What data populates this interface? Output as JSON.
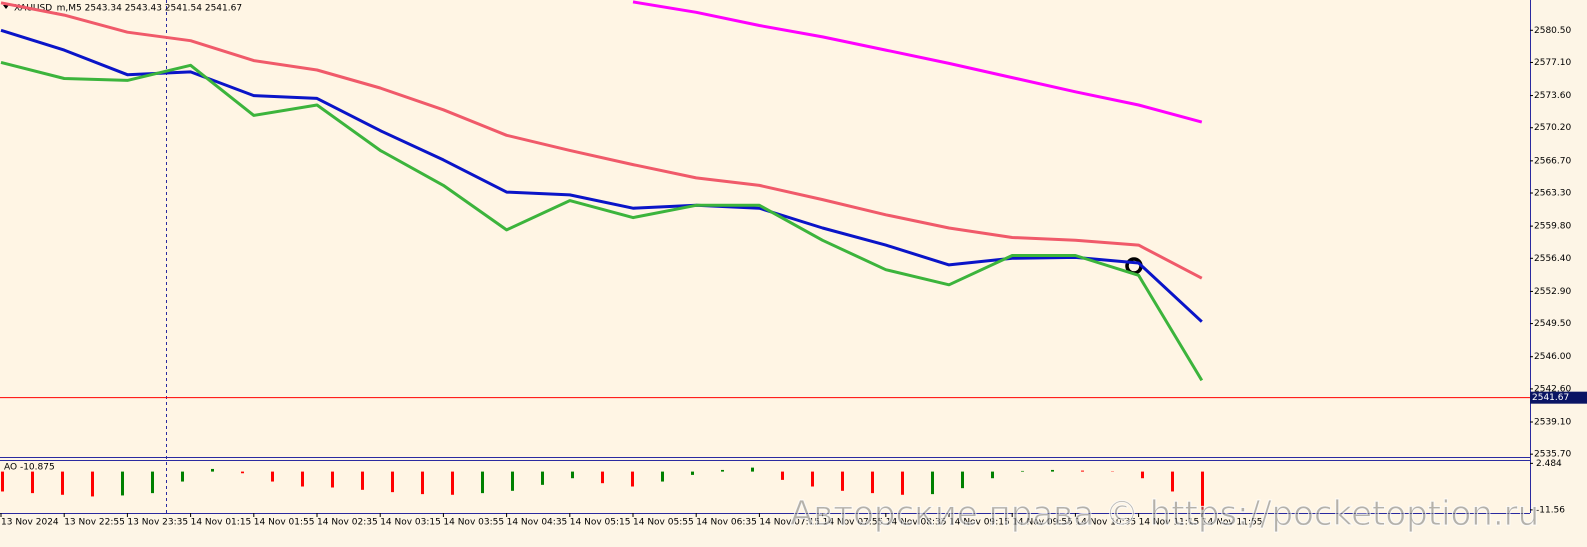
{
  "chart_data": [
    {
      "type": "line",
      "title": "XAUUSD_m,M5  2543.34 2543.43 2541.54 2541.67",
      "categories": [
        "13 Nov 2024",
        "13 Nov 22:55",
        "13 Nov 23:35",
        "14 Nov 01:15",
        "14 Nov 01:55",
        "14 Nov 02:35",
        "14 Nov 03:15",
        "14 Nov 03:55",
        "14 Nov 04:35",
        "14 Nov 05:15",
        "14 Nov 05:55",
        "14 Nov 06:35",
        "14 Nov 07:15",
        "14 Nov 07:55",
        "14 Nov 08:35",
        "14 Nov 09:15",
        "14 Nov 09:55",
        "14 Nov 10:35",
        "14 Nov 11:15",
        "14 Nov 11:55"
      ],
      "series": [
        {
          "color": "#ff00ff",
          "values": [
            null,
            null,
            null,
            null,
            null,
            null,
            null,
            null,
            null,
            null,
            2583.5,
            2582.4,
            2581.0,
            2579.8,
            2578.4,
            2577.0,
            2575.5,
            2574.0,
            2572.6,
            2570.8
          ]
        },
        {
          "color": "#f05a6a",
          "values": [
            2583.4,
            2582.1,
            2580.3,
            2579.4,
            2577.3,
            2576.3,
            2574.4,
            2572.1,
            2569.4,
            2567.8,
            2566.3,
            2564.9,
            2564.1,
            2562.6,
            2561.0,
            2559.6,
            2558.6,
            2558.3,
            2557.8,
            2554.3
          ]
        },
        {
          "color": "#0a14c8",
          "values": [
            2580.5,
            2578.4,
            2575.8,
            2576.1,
            2573.6,
            2573.3,
            2569.9,
            2566.8,
            2563.4,
            2563.1,
            2561.7,
            2562.0,
            2561.7,
            2559.6,
            2557.8,
            2555.7,
            2556.4,
            2556.5,
            2555.9,
            2549.7
          ]
        },
        {
          "color": "#3cb43c",
          "values": [
            2577.1,
            2575.4,
            2575.2,
            2576.8,
            2571.5,
            2572.6,
            2567.8,
            2564.1,
            2559.4,
            2562.5,
            2560.7,
            2562.0,
            2562.0,
            2558.3,
            2555.2,
            2553.6,
            2556.7,
            2556.7,
            2554.6,
            2543.5
          ]
        }
      ],
      "ylim": [
        2535.4,
        2583.7
      ],
      "yticks": [
        {
          "value": 2580.5,
          "label": "2580.50"
        },
        {
          "value": 2577.1,
          "label": "2577.10"
        },
        {
          "value": 2573.6,
          "label": "2573.60"
        },
        {
          "value": 2570.2,
          "label": "2570.20"
        },
        {
          "value": 2566.7,
          "label": "2566.70"
        },
        {
          "value": 2563.3,
          "label": "2563.30"
        },
        {
          "value": 2559.8,
          "label": "2559.80"
        },
        {
          "value": 2556.4,
          "label": "2556.40"
        },
        {
          "value": 2552.9,
          "label": "2552.90"
        },
        {
          "value": 2549.5,
          "label": "2549.50"
        },
        {
          "value": 2546.0,
          "label": "2546.00"
        },
        {
          "value": 2542.6,
          "label": "2542.60"
        },
        {
          "value": 2539.1,
          "label": "2539.10"
        },
        {
          "value": 2535.7,
          "label": "2535.70"
        }
      ],
      "current_price": 2541.67,
      "price_line_color": "#ff0000"
    },
    {
      "type": "bar",
      "title": "AO -10.875",
      "values": [
        -6,
        -6.5,
        -7,
        -7.5,
        -7.2,
        -6.5,
        -3,
        0.8,
        -0.5,
        -3,
        -4.5,
        -4.8,
        -5.5,
        -6.2,
        -6.8,
        -7,
        -6.5,
        -5.8,
        -4,
        -2,
        -3.5,
        -4.5,
        -3,
        -1,
        0.5,
        1.2,
        -2.5,
        -4.5,
        -5.8,
        -6.5,
        -7,
        -6.8,
        -5,
        -2,
        0.2,
        0.5,
        0.3,
        0.1,
        -2,
        -6,
        -11.5
      ],
      "up_color": "#008000",
      "down_color": "#ff0000",
      "ylim": [
        -12.5,
        3.5
      ],
      "yticks": [
        2.484,
        -11.56
      ]
    }
  ],
  "watermark": "Авторские права © https://pocketoption.ru"
}
